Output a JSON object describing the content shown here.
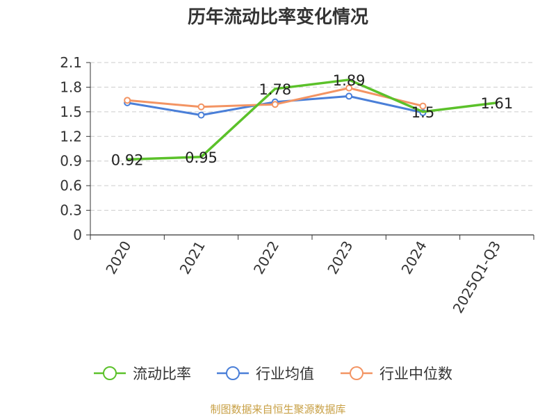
{
  "chart_data": {
    "type": "line",
    "title": "历年流动比率变化情况",
    "categories": [
      "2020",
      "2021",
      "2022",
      "2023",
      "2024",
      "2025Q1-Q3"
    ],
    "ylim": [
      0,
      2.1
    ],
    "yticks": [
      "0",
      "0.3",
      "0.6",
      "0.9",
      "1.2",
      "1.5",
      "1.8",
      "2.1"
    ],
    "grid": true,
    "legend_position": "bottom",
    "series": [
      {
        "name": "流动比率",
        "color": "#5bc12a",
        "marker": "none",
        "values": [
          0.92,
          0.95,
          1.78,
          1.89,
          1.5,
          1.61
        ],
        "labels": [
          "0.92",
          "0.95",
          "1.78",
          "1.89",
          "1.5",
          "1.61"
        ]
      },
      {
        "name": "行业均值",
        "color": "#4a7fd8",
        "marker": "hollow-circle",
        "values": [
          1.61,
          1.46,
          1.62,
          1.69,
          1.49,
          null
        ]
      },
      {
        "name": "行业中位数",
        "color": "#f39463",
        "marker": "hollow-circle",
        "values": [
          1.64,
          1.56,
          1.59,
          1.79,
          1.57,
          null
        ]
      }
    ],
    "source": "制图数据来自恒生聚源数据库"
  }
}
